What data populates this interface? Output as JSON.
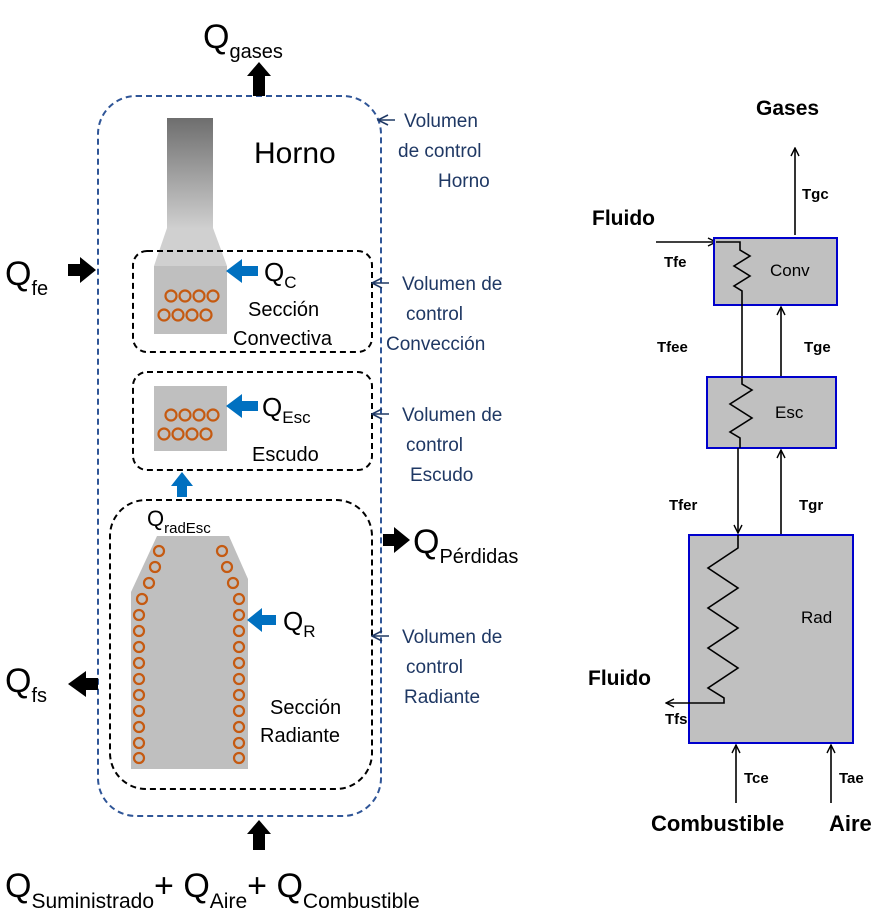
{
  "left_diagram": {
    "q_gases": {
      "main": "Q",
      "sub": "gases"
    },
    "horno_label": "Horno",
    "q_fe": {
      "main": "Q",
      "sub": "fe"
    },
    "q_c": {
      "main": "Q",
      "sub": "C"
    },
    "conv_section": {
      "line1": "Sección",
      "line2": "Convectiva"
    },
    "q_esc": {
      "main": "Q",
      "sub": "Esc"
    },
    "escudo_label": "Escudo",
    "q_rad_esc": {
      "main": "Q",
      "sub": "radEsc"
    },
    "q_perdidas": {
      "main": "Q",
      "sub": "Pérdidas"
    },
    "q_r": {
      "main": "Q",
      "sub": "R"
    },
    "q_fs": {
      "main": "Q",
      "sub": "fs"
    },
    "rad_section": {
      "line1": "Sección",
      "line2": "Radiante"
    },
    "supply": {
      "q1": {
        "main": "Q",
        "sub": "Suministrado"
      },
      "plus1": "+",
      "q2": {
        "main": "Q",
        "sub": "Aire"
      },
      "plus2": "+",
      "q3": {
        "main": "Q",
        "sub": "Combustible"
      }
    },
    "cv_horno": [
      "Volumen",
      "de control",
      "Horno"
    ],
    "cv_conv": [
      "Volumen de",
      "control",
      "Convección"
    ],
    "cv_escudo": [
      "Volumen de",
      "control",
      "Escudo"
    ],
    "cv_rad": [
      "Volumen de",
      "control",
      "Radiante"
    ],
    "colors": {
      "dashed_blue": "#2f5597",
      "annotation_blue": "#1f3864",
      "flow_arrow": "#0070c0",
      "tube_orange": "#c55a11",
      "furnace_gray": "#bfbfbf"
    }
  },
  "right_diagram": {
    "gases": "Gases",
    "tgc": "Tgc",
    "fluido_in": "Fluido",
    "tfe": "Tfe",
    "conv": "Conv",
    "tfee": "Tfee",
    "tge": "Tge",
    "esc": "Esc",
    "tfer": "Tfer",
    "tgr": "Tgr",
    "rad": "Rad",
    "fluido_out": "Fluido",
    "tfs": "Tfs",
    "tce": "Tce",
    "tae": "Tae",
    "combustible": "Combustible",
    "aire": "Aire",
    "colors": {
      "box_fill": "#c0c0c0",
      "box_border": "#0000cc"
    }
  }
}
